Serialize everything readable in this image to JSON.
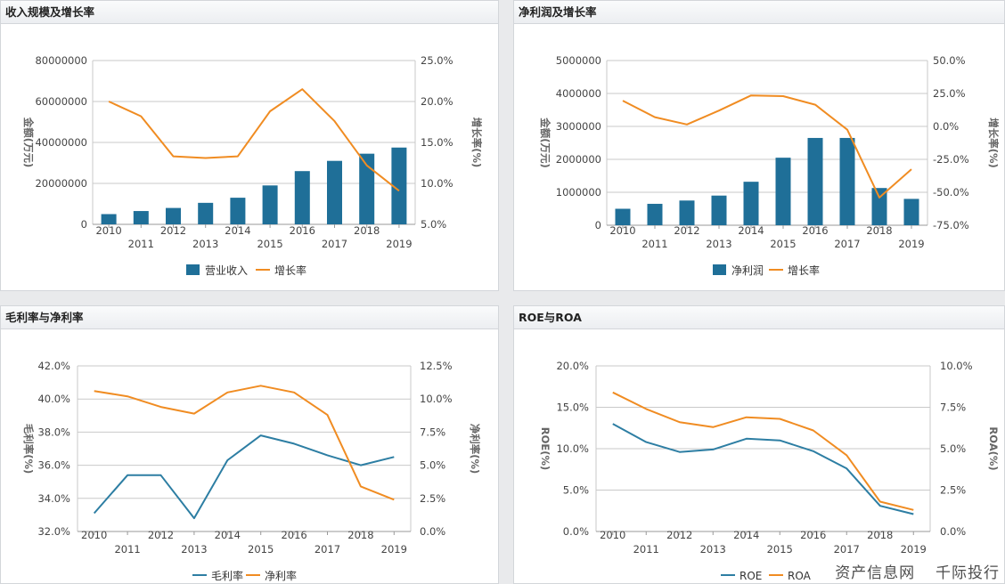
{
  "colors": {
    "bar": "#1f6f98",
    "line_orange": "#f08c22",
    "line_blue": "#2d7ea3",
    "grid": "#c9c9c9",
    "axis_text": "#444444"
  },
  "watermark": {
    "part1": "资产信息网",
    "part2": "千际投行"
  },
  "chart_data": [
    {
      "title": "收入规模及增长率",
      "type": "bar+line",
      "categories": [
        "2010",
        "2011",
        "2012",
        "2013",
        "2014",
        "2015",
        "2016",
        "2017",
        "2018",
        "2019"
      ],
      "series": [
        {
          "name": "营业收入",
          "kind": "bar",
          "axis": "left",
          "values": [
            5000000,
            6500000,
            8000000,
            10500000,
            13000000,
            19000000,
            26000000,
            31000000,
            34500000,
            37500000
          ]
        },
        {
          "name": "增长率",
          "kind": "line",
          "axis": "right",
          "values": [
            20.0,
            18.2,
            13.3,
            13.1,
            13.3,
            18.8,
            21.5,
            17.6,
            12.2,
            9.1
          ]
        }
      ],
      "left_axis": {
        "label": "金额(万元)",
        "min": 0,
        "max": 80000000,
        "ticks": [
          "0",
          "20000000",
          "40000000",
          "60000000",
          "80000000"
        ]
      },
      "right_axis": {
        "label": "增长率(%)",
        "min": 5,
        "max": 25,
        "ticks": [
          "5.0%",
          "10.0%",
          "15.0%",
          "20.0%",
          "25.0%"
        ]
      },
      "legend": "bottom-center"
    },
    {
      "title": "净利润及增长率",
      "type": "bar+line",
      "categories": [
        "2010",
        "2011",
        "2012",
        "2013",
        "2014",
        "2015",
        "2016",
        "2017",
        "2018",
        "2019"
      ],
      "series": [
        {
          "name": "净利润",
          "kind": "bar",
          "axis": "left",
          "values": [
            500000,
            650000,
            750000,
            900000,
            1320000,
            2050000,
            2650000,
            2650000,
            1130000,
            800000
          ]
        },
        {
          "name": "增长率",
          "kind": "line",
          "axis": "right",
          "values": [
            19.5,
            7.0,
            1.5,
            12.0,
            23.5,
            23.0,
            16.5,
            -2.5,
            -54.0,
            -32.5
          ]
        }
      ],
      "left_axis": {
        "label": "金额(万元)",
        "min": 0,
        "max": 5000000,
        "ticks": [
          "0",
          "1000000",
          "2000000",
          "3000000",
          "4000000",
          "5000000"
        ]
      },
      "right_axis": {
        "label": "增长率(%)",
        "min": -75,
        "max": 50,
        "ticks": [
          "-75.0%",
          "-50.0%",
          "-25.0%",
          "0.0%",
          "25.0%",
          "50.0%"
        ]
      },
      "legend": "bottom-center"
    },
    {
      "title": "毛利率与净利率",
      "type": "line",
      "categories": [
        "2010",
        "2011",
        "2012",
        "2013",
        "2014",
        "2015",
        "2016",
        "2017",
        "2018",
        "2019"
      ],
      "series": [
        {
          "name": "毛利率",
          "kind": "line",
          "axis": "left",
          "color": "blue",
          "values": [
            33.1,
            35.4,
            35.4,
            32.8,
            36.3,
            37.8,
            37.3,
            36.6,
            36.0,
            36.5
          ]
        },
        {
          "name": "净利率",
          "kind": "line",
          "axis": "right",
          "color": "orange",
          "values": [
            10.6,
            10.2,
            9.4,
            8.9,
            10.5,
            11.0,
            10.5,
            8.8,
            3.4,
            2.4
          ]
        }
      ],
      "left_axis": {
        "label": "毛利率(%)",
        "min": 32,
        "max": 42,
        "ticks": [
          "32.0%",
          "34.0%",
          "36.0%",
          "38.0%",
          "40.0%",
          "42.0%"
        ]
      },
      "right_axis": {
        "label": "净利率(%)",
        "min": 0,
        "max": 12.5,
        "ticks": [
          "0.0%",
          "2.5%",
          "5.0%",
          "7.5%",
          "10.0%",
          "12.5%"
        ]
      },
      "legend": "bottom-center"
    },
    {
      "title": "ROE与ROA",
      "type": "line",
      "categories": [
        "2010",
        "2011",
        "2012",
        "2013",
        "2014",
        "2015",
        "2016",
        "2017",
        "2018",
        "2019"
      ],
      "series": [
        {
          "name": "ROE",
          "kind": "line",
          "axis": "left",
          "color": "blue",
          "values": [
            13.0,
            10.8,
            9.6,
            9.9,
            11.2,
            11.0,
            9.7,
            7.6,
            3.1,
            2.1
          ]
        },
        {
          "name": "ROA",
          "kind": "line",
          "axis": "right",
          "color": "orange",
          "values": [
            8.4,
            7.4,
            6.6,
            6.3,
            6.9,
            6.8,
            6.1,
            4.6,
            1.8,
            1.3
          ]
        }
      ],
      "left_axis": {
        "label": "ROE(%)",
        "min": 0,
        "max": 20,
        "ticks": [
          "0.0%",
          "5.0%",
          "10.0%",
          "15.0%",
          "20.0%"
        ]
      },
      "right_axis": {
        "label": "ROA(%)",
        "min": 0,
        "max": 10,
        "ticks": [
          "0.0%",
          "2.5%",
          "5.0%",
          "7.5%",
          "10.0%"
        ]
      },
      "legend": "bottom-center"
    }
  ]
}
